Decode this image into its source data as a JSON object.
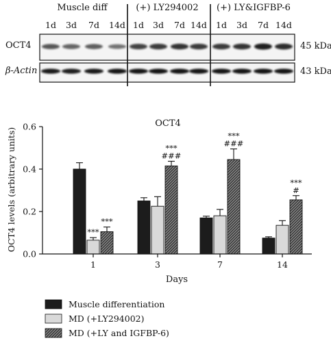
{
  "blot": {
    "group_labels": [
      "Muscle diff",
      "(+) LY294002",
      "(+) LY&IGFBP-6"
    ],
    "lane_labels": [
      "1d",
      "3d",
      "7d",
      "14d",
      "1d",
      "3d",
      "7d",
      "14d",
      "1d",
      "3d",
      "7d",
      "14d"
    ],
    "row_labels": [
      "OCT4",
      "β-Actin"
    ],
    "size_labels": [
      "45 kDa",
      "43 kDa"
    ]
  },
  "chart_data": {
    "type": "bar",
    "title": "OCT4",
    "xlabel": "Days",
    "ylabel": "OCT4 levels (arbitrary units)",
    "ylim": [
      0,
      0.6
    ],
    "yticks": [
      "0.0",
      "0.2",
      "0.4",
      "0.6"
    ],
    "categories": [
      "1",
      "3",
      "7",
      "14"
    ],
    "series": [
      {
        "name": "Muscle differentiation",
        "values": [
          0.4,
          0.25,
          0.17,
          0.075
        ],
        "errors": [
          0.03,
          0.015,
          0.008,
          0.006
        ],
        "color": "#1c1c1c"
      },
      {
        "name": "MD (+LY294002)",
        "values": [
          0.065,
          0.225,
          0.18,
          0.135
        ],
        "errors": [
          0.012,
          0.045,
          0.03,
          0.022
        ],
        "color": "#d9d9d9"
      },
      {
        "name": "MD (+LY and IGFBP-6)",
        "values": [
          0.105,
          0.415,
          0.445,
          0.255
        ],
        "errors": [
          0.022,
          0.022,
          0.05,
          0.02
        ],
        "color": "#555555"
      }
    ],
    "annotations": [
      [
        "",
        "***",
        "***"
      ],
      [
        "",
        "",
        "***\n###"
      ],
      [
        "",
        "",
        "***\n###"
      ],
      [
        "",
        "",
        "***\n#"
      ]
    ]
  }
}
